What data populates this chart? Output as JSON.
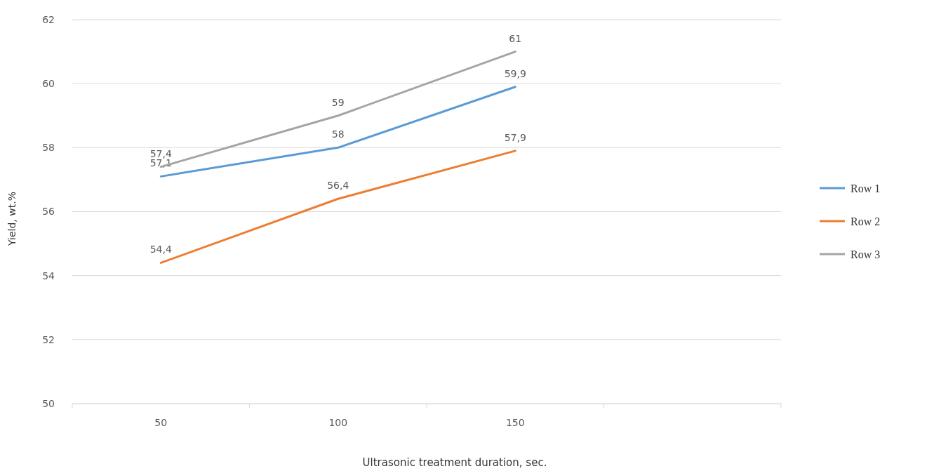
{
  "chart_data": {
    "type": "line",
    "xlabel": "Ultrasonic treatment duration, sec.",
    "ylabel": "Yield, wt.%",
    "categories": [
      "50",
      "100",
      "150",
      null
    ],
    "series": [
      {
        "name": "Row 1",
        "color": "#5b9bd5",
        "values": [
          57.1,
          58,
          59.9,
          null
        ],
        "value_labels": [
          "57,1",
          "58",
          "59,9",
          null
        ]
      },
      {
        "name": "Row 2",
        "color": "#ed7d31",
        "values": [
          54.4,
          56.4,
          57.9,
          null
        ],
        "value_labels": [
          "54,4",
          "56,4",
          "57,9",
          null
        ]
      },
      {
        "name": "Row 3",
        "color": "#a5a5a5",
        "values": [
          57.4,
          59,
          61,
          null
        ],
        "value_labels": [
          "57,4",
          "59",
          "61",
          null
        ]
      }
    ],
    "ylim": [
      50,
      62
    ],
    "yticks": [
      50,
      52,
      54,
      56,
      58,
      60,
      62
    ],
    "grid": "y",
    "legend": "right",
    "marker": "none",
    "line_style": "solid"
  }
}
